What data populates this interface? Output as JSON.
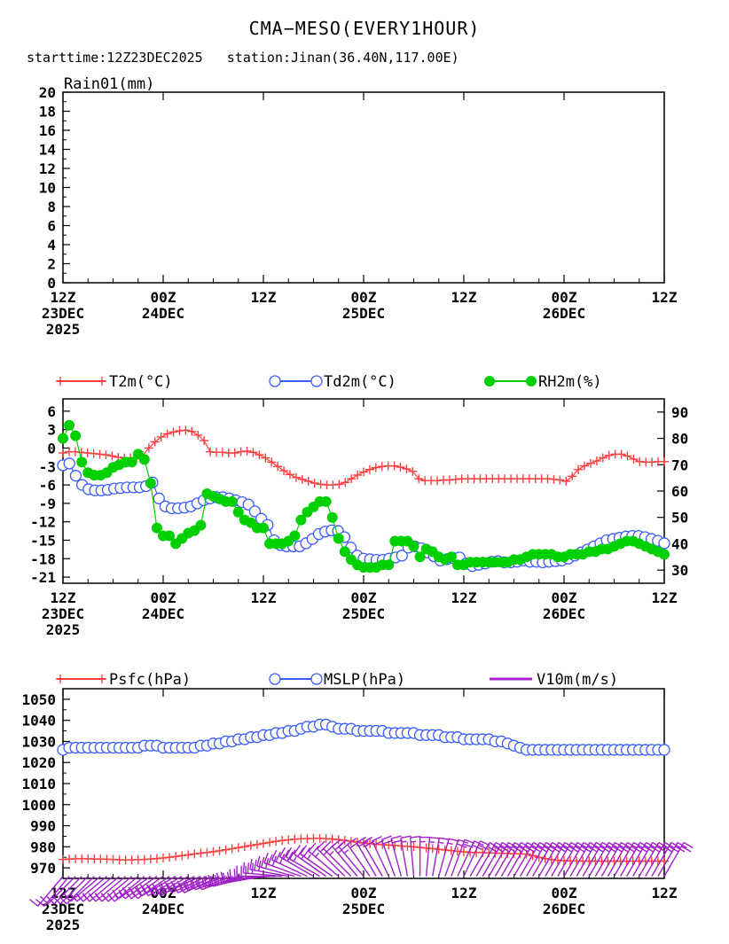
{
  "header": {
    "title": "CMA−MESO(EVERY1HOUR)",
    "subtitle": "starttime:12Z23DEC2025   station:Jinan(36.40N,117.00E)"
  },
  "colors": {
    "t2m": "#ff4040",
    "td2m": "#3a5cff",
    "rh2m": "#00d000",
    "psfc": "#ff4040",
    "mslp": "#3a5cff",
    "v10m": "#a020c8"
  },
  "time_axis": {
    "ticks": [
      {
        "label": "12Z",
        "date": "23DEC",
        "year": "2025",
        "hour": 0
      },
      {
        "label": "00Z",
        "date": "24DEC",
        "year": "",
        "hour": 12
      },
      {
        "label": "12Z",
        "date": "",
        "year": "",
        "hour": 24
      },
      {
        "label": "00Z",
        "date": "25DEC",
        "year": "",
        "hour": 36
      },
      {
        "label": "12Z",
        "date": "",
        "year": "",
        "hour": 48
      },
      {
        "label": "00Z",
        "date": "26DEC",
        "year": "",
        "hour": 60
      },
      {
        "label": "12Z",
        "date": "",
        "year": "",
        "hour": 72
      }
    ]
  },
  "chart_data": [
    {
      "type": "bar",
      "title": "Rain01(mm)",
      "x_hours": [
        0,
        72
      ],
      "values": [],
      "ylim": [
        0,
        20
      ],
      "yticks": [
        "0",
        "2",
        "4",
        "6",
        "8",
        "10",
        "12",
        "14",
        "16",
        "18",
        "20"
      ]
    },
    {
      "type": "line",
      "legend": [
        "T2m(°C)",
        "Td2m(°C)",
        "RH2m(%)"
      ],
      "ylim_left": [
        -22,
        8
      ],
      "yticks_left": [
        "6",
        "3",
        "0",
        "-3",
        "-6",
        "-9",
        "-12",
        "-15",
        "-18",
        "-21"
      ],
      "ylim_right": [
        25,
        95
      ],
      "yticks_right": [
        "90",
        "80",
        "70",
        "60",
        "50",
        "40",
        "30"
      ],
      "series": [
        {
          "name": "T2m(°C)",
          "axis": "left",
          "marker": "plus",
          "values": [
            -0.8,
            -0.6,
            -0.6,
            -0.7,
            -0.8,
            -0.9,
            -1.0,
            -1.1,
            -1.3,
            -1.5,
            -1.6,
            -1.6,
            -1.6,
            -1.2,
            0.0,
            1.0,
            1.8,
            2.3,
            2.6,
            2.8,
            2.9,
            2.7,
            2.1,
            1.2,
            -0.6,
            -0.7,
            -0.7,
            -0.8,
            -0.8,
            -0.6,
            -0.5,
            -0.7,
            -1.1,
            -1.6,
            -2.3,
            -3.0,
            -3.7,
            -4.3,
            -4.8,
            -5.1,
            -5.4,
            -5.7,
            -5.9,
            -6.0,
            -6.0,
            -5.9,
            -5.6,
            -5.0,
            -4.4,
            -3.9,
            -3.5,
            -3.2,
            -3.0,
            -2.9,
            -2.9,
            -3.1,
            -3.4,
            -3.8,
            -5.0,
            -5.3,
            -5.3,
            -5.3,
            -5.2,
            -5.2,
            -5.1,
            -5.0,
            -5.0,
            -5.0,
            -5.0,
            -5.0,
            -5.0,
            -5.0,
            -5.0,
            -5.0,
            -5.0,
            -5.0,
            -5.0,
            -5.0,
            -5.0,
            -5.0,
            -5.1,
            -5.2,
            -5.4,
            -4.6,
            -3.5,
            -2.9,
            -2.5,
            -2.1,
            -1.6,
            -1.2,
            -1.0,
            -1.0,
            -1.3,
            -1.8,
            -2.2,
            -2.3,
            -2.3,
            -2.2,
            -2.2
          ]
        },
        {
          "name": "Td2m(°C)",
          "axis": "left",
          "marker": "circle",
          "values": [
            -2.8,
            -2.5,
            -4.5,
            -6.0,
            -6.7,
            -6.9,
            -6.9,
            -6.8,
            -6.6,
            -6.5,
            -6.4,
            -6.4,
            -6.4,
            -6.2,
            -5.6,
            -8.2,
            -9.5,
            -9.8,
            -9.8,
            -9.7,
            -9.5,
            -9.0,
            -8.5,
            -8.2,
            -8.0,
            -8.0,
            -8.2,
            -8.5,
            -8.8,
            -9.2,
            -10.3,
            -11.5,
            -12.5,
            -15.0,
            -15.8,
            -16.0,
            -16.0,
            -16.0,
            -15.5,
            -14.8,
            -14.0,
            -13.6,
            -13.4,
            -13.5,
            -14.5,
            -16.2,
            -17.5,
            -18.0,
            -18.1,
            -18.2,
            -18.2,
            -18.0,
            -17.8,
            -17.5,
            -16.2,
            -16.0,
            -16.3,
            -17.0,
            -17.6,
            -18.3,
            -18.1,
            -17.9,
            -17.8,
            -18.8,
            -19.2,
            -19.0,
            -18.8,
            -18.5,
            -18.4,
            -18.6,
            -18.6,
            -18.5,
            -18.3,
            -18.5,
            -18.5,
            -18.6,
            -18.5,
            -18.4,
            -18.3,
            -18.0,
            -17.5,
            -17.0,
            -16.5,
            -16.0,
            -15.5,
            -15.0,
            -14.8,
            -14.6,
            -14.4,
            -14.3,
            -14.3,
            -14.5,
            -14.8,
            -15.1,
            -15.5
          ]
        },
        {
          "name": "RH2m(%)",
          "axis": "right",
          "marker": "dot",
          "values": [
            80,
            85,
            81,
            71,
            67,
            66,
            66,
            67,
            69,
            70,
            71,
            71,
            74,
            72,
            63,
            46,
            43,
            43,
            40,
            42,
            44,
            45,
            47,
            59,
            58,
            57,
            56,
            56,
            52,
            49,
            48,
            46,
            46,
            40,
            40,
            40,
            41,
            43,
            49,
            52,
            54,
            56,
            56,
            50,
            42,
            37,
            34,
            32,
            31,
            31,
            31,
            32,
            32,
            41,
            41,
            41,
            39,
            35,
            38,
            37,
            35,
            34,
            35,
            32,
            32,
            33,
            33,
            33,
            33,
            33,
            33,
            33,
            34,
            34,
            35,
            36,
            36,
            36,
            36,
            35,
            35,
            36,
            36,
            36,
            37,
            37,
            38,
            38,
            39,
            40,
            41,
            41,
            40,
            39,
            38,
            37,
            36
          ]
        }
      ]
    },
    {
      "type": "line",
      "legend": [
        "Psfc(hPa)",
        "MSLP(hPa)",
        "V10m(m/s)"
      ],
      "ylim": [
        965,
        1055
      ],
      "yticks": [
        "970",
        "980",
        "990",
        "1000",
        "1010",
        "1020",
        "1030",
        "1040",
        "1050"
      ],
      "series": [
        {
          "name": "Psfc(hPa)",
          "marker": "plus",
          "values": [
            974.0,
            974.2,
            974.3,
            974.3,
            974.3,
            974.2,
            974.2,
            974.1,
            974.0,
            973.8,
            973.8,
            973.8,
            973.9,
            974.0,
            974.2,
            974.4,
            974.7,
            975.0,
            975.4,
            975.8,
            976.2,
            976.6,
            977.0,
            977.3,
            977.7,
            978.1,
            978.6,
            979.1,
            979.6,
            980.1,
            980.6,
            981.1,
            981.6,
            982.1,
            982.6,
            983.0,
            983.3,
            983.6,
            983.8,
            983.9,
            984.0,
            984.0,
            983.9,
            983.7,
            983.4,
            983.0,
            982.6,
            982.2,
            981.8,
            981.5,
            981.2,
            981.0,
            980.8,
            980.6,
            980.4,
            980.2,
            980.0,
            979.7,
            979.4,
            979.1,
            978.8,
            978.5,
            978.2,
            977.9,
            977.6,
            977.4,
            977.3,
            977.2,
            977.1,
            977.0,
            976.9,
            976.8,
            976.7,
            976.6,
            976.5,
            975.8,
            975.0,
            974.4,
            973.9,
            973.6,
            973.4,
            973.3,
            973.3,
            973.2,
            973.2,
            973.2,
            973.2,
            973.2,
            973.2,
            973.2,
            973.2,
            973.2,
            973.2,
            973.2,
            973.2,
            973.2,
            973.2
          ]
        },
        {
          "name": "MSLP(hPa)",
          "marker": "circle",
          "values": [
            1026,
            1027,
            1027,
            1027,
            1027,
            1027,
            1027,
            1027,
            1027,
            1027,
            1027,
            1027,
            1027,
            1028,
            1028,
            1028,
            1027,
            1027,
            1027,
            1027,
            1027,
            1027,
            1028,
            1028,
            1029,
            1029,
            1030,
            1030,
            1031,
            1031,
            1032,
            1032,
            1033,
            1033,
            1034,
            1034,
            1035,
            1035,
            1036,
            1037,
            1037,
            1038,
            1038,
            1037,
            1036,
            1036,
            1036,
            1035,
            1035,
            1035,
            1035,
            1035,
            1034,
            1034,
            1034,
            1034,
            1034,
            1033,
            1033,
            1033,
            1033,
            1032,
            1032,
            1032,
            1031,
            1031,
            1031,
            1031,
            1031,
            1030,
            1030,
            1029,
            1028,
            1027,
            1026,
            1026,
            1026,
            1026,
            1026,
            1026,
            1026,
            1026,
            1026,
            1026,
            1026,
            1026,
            1026,
            1026,
            1026,
            1026,
            1026,
            1026,
            1026,
            1026,
            1026,
            1026,
            1026
          ]
        },
        {
          "name": "V10m(m/s)",
          "marker": "wind-barb",
          "hours": [
            0,
            0.75,
            1.5,
            2.25,
            3,
            3.75,
            4.5,
            5.25,
            6,
            6.75,
            7.5,
            8.25,
            9,
            9.75,
            10.5,
            11.25,
            12,
            12.75,
            13.5,
            14.25,
            15,
            15.75,
            16.5,
            17.25,
            18,
            18.75,
            19.5,
            20.25,
            21,
            21.75,
            22.5,
            23.25,
            24,
            24.75,
            25.5,
            26.25,
            27,
            27.75,
            28.5,
            29.25,
            30,
            30.75,
            31.5,
            32.25,
            33,
            33.75,
            34.5,
            35.25,
            36,
            36.75,
            37.5,
            38.25,
            39,
            39.75,
            40.5,
            41.25,
            42,
            42.75,
            43.5,
            44.25,
            45,
            45.75,
            46.5,
            47.25,
            48,
            48.75,
            49.5,
            50.25,
            51,
            51.75,
            52.5,
            53.25,
            54,
            54.75,
            55.5,
            56.25,
            57,
            57.75,
            58.5,
            59.25,
            60,
            60.75,
            61.5,
            62.25,
            63,
            63.75,
            64.5,
            65.25,
            66,
            66.75,
            67.5,
            68.25,
            69,
            69.75,
            70.5,
            71.25,
            72
          ],
          "direction_deg": [
            220,
            220,
            225,
            225,
            225,
            225,
            230,
            230,
            230,
            230,
            230,
            230,
            230,
            230,
            235,
            235,
            235,
            235,
            240,
            240,
            240,
            240,
            245,
            245,
            245,
            245,
            250,
            250,
            250,
            255,
            255,
            260,
            260,
            265,
            270,
            275,
            280,
            285,
            290,
            295,
            300,
            300,
            305,
            305,
            310,
            315,
            315,
            320,
            320,
            325,
            330,
            330,
            335,
            340,
            345,
            350,
            355,
            0,
            5,
            10,
            15,
            20,
            20,
            25,
            25,
            30,
            30,
            30,
            30,
            30,
            30,
            30,
            30,
            30,
            30,
            30,
            30,
            30,
            30,
            30,
            30,
            30,
            30,
            30,
            30,
            30,
            30,
            30,
            30,
            30,
            30,
            30,
            30,
            30,
            30,
            30,
            30,
            30,
            30
          ],
          "speed_ms": [
            4,
            4,
            5,
            5,
            5,
            5,
            5,
            6,
            6,
            6,
            6,
            6,
            6,
            6,
            6,
            7,
            7,
            7,
            7,
            8,
            8,
            8,
            8,
            8,
            9,
            9,
            9,
            9,
            9,
            10,
            10,
            10,
            10,
            10,
            11,
            11,
            11,
            11,
            11,
            11,
            11,
            10,
            10,
            10,
            10,
            10,
            9,
            9,
            9,
            8,
            8,
            8,
            7,
            7,
            7,
            6,
            6,
            6,
            6,
            6,
            6,
            7,
            7,
            7,
            7,
            7,
            7,
            7,
            7,
            7,
            7,
            7,
            7,
            7,
            7,
            7,
            7,
            7,
            7,
            7,
            7,
            7,
            7,
            7,
            7,
            7,
            7,
            7,
            7,
            7,
            7,
            7,
            7,
            7,
            7,
            7,
            7
          ]
        }
      ]
    }
  ]
}
